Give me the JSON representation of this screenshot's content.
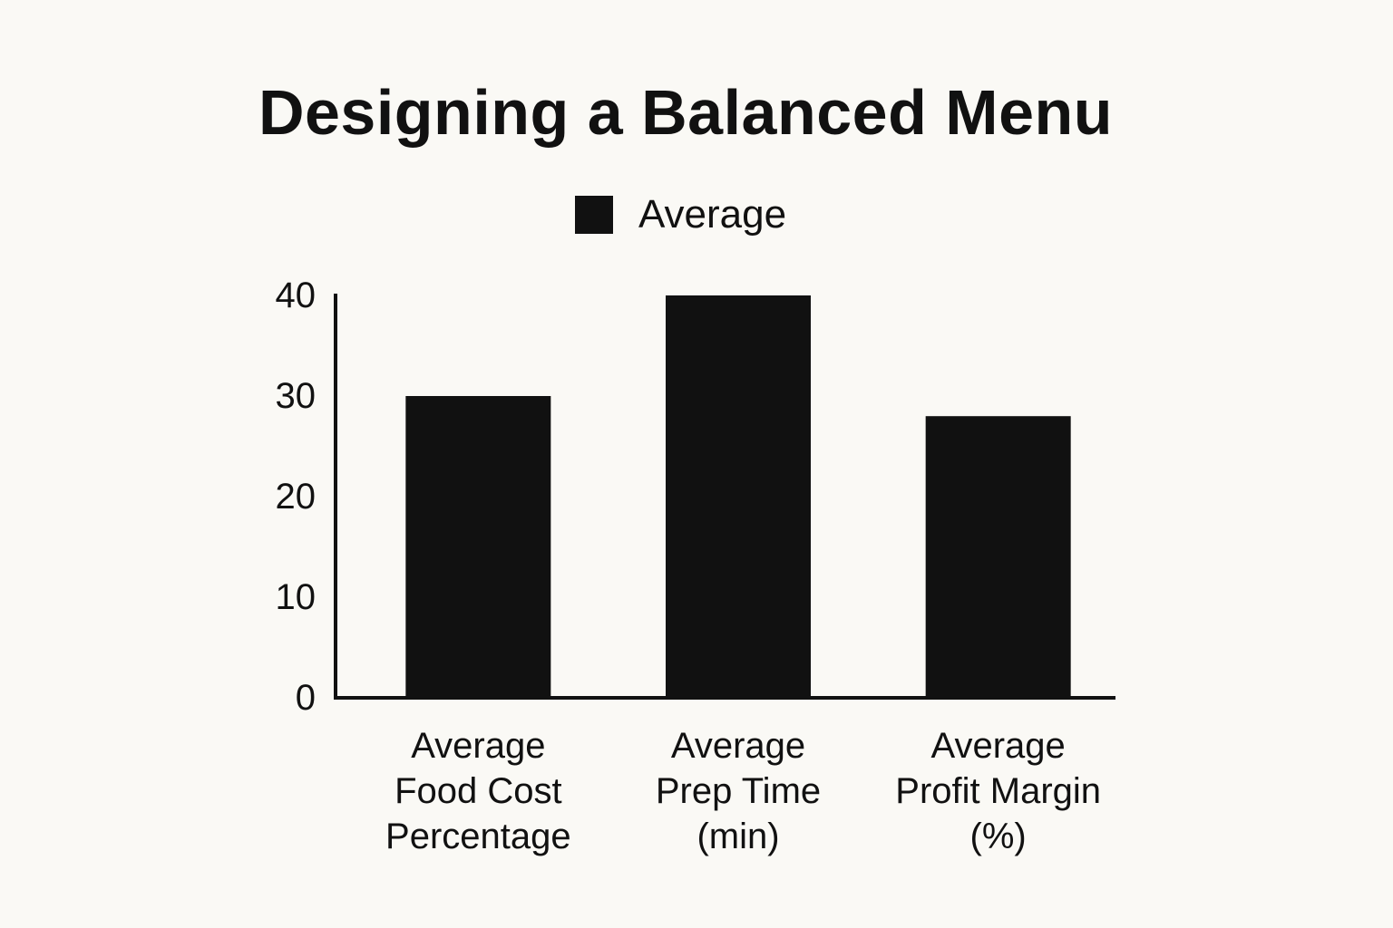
{
  "chart_data": {
    "type": "bar",
    "title": "Designing a Balanced Menu",
    "categories": [
      [
        "Average",
        "Food Cost",
        "Percentage"
      ],
      [
        "Average",
        "Prep Time",
        "(min)"
      ],
      [
        "Average",
        "Profit Margin",
        "(%)"
      ]
    ],
    "series": [
      {
        "name": "Average",
        "values": [
          30,
          40,
          28
        ],
        "color": "#111111"
      }
    ],
    "ylim": [
      0,
      40
    ],
    "yticks": [
      "0",
      "10",
      "20",
      "30",
      "40"
    ],
    "xlabel": "",
    "ylabel": "",
    "grid": false,
    "legend_position": "top-center"
  }
}
